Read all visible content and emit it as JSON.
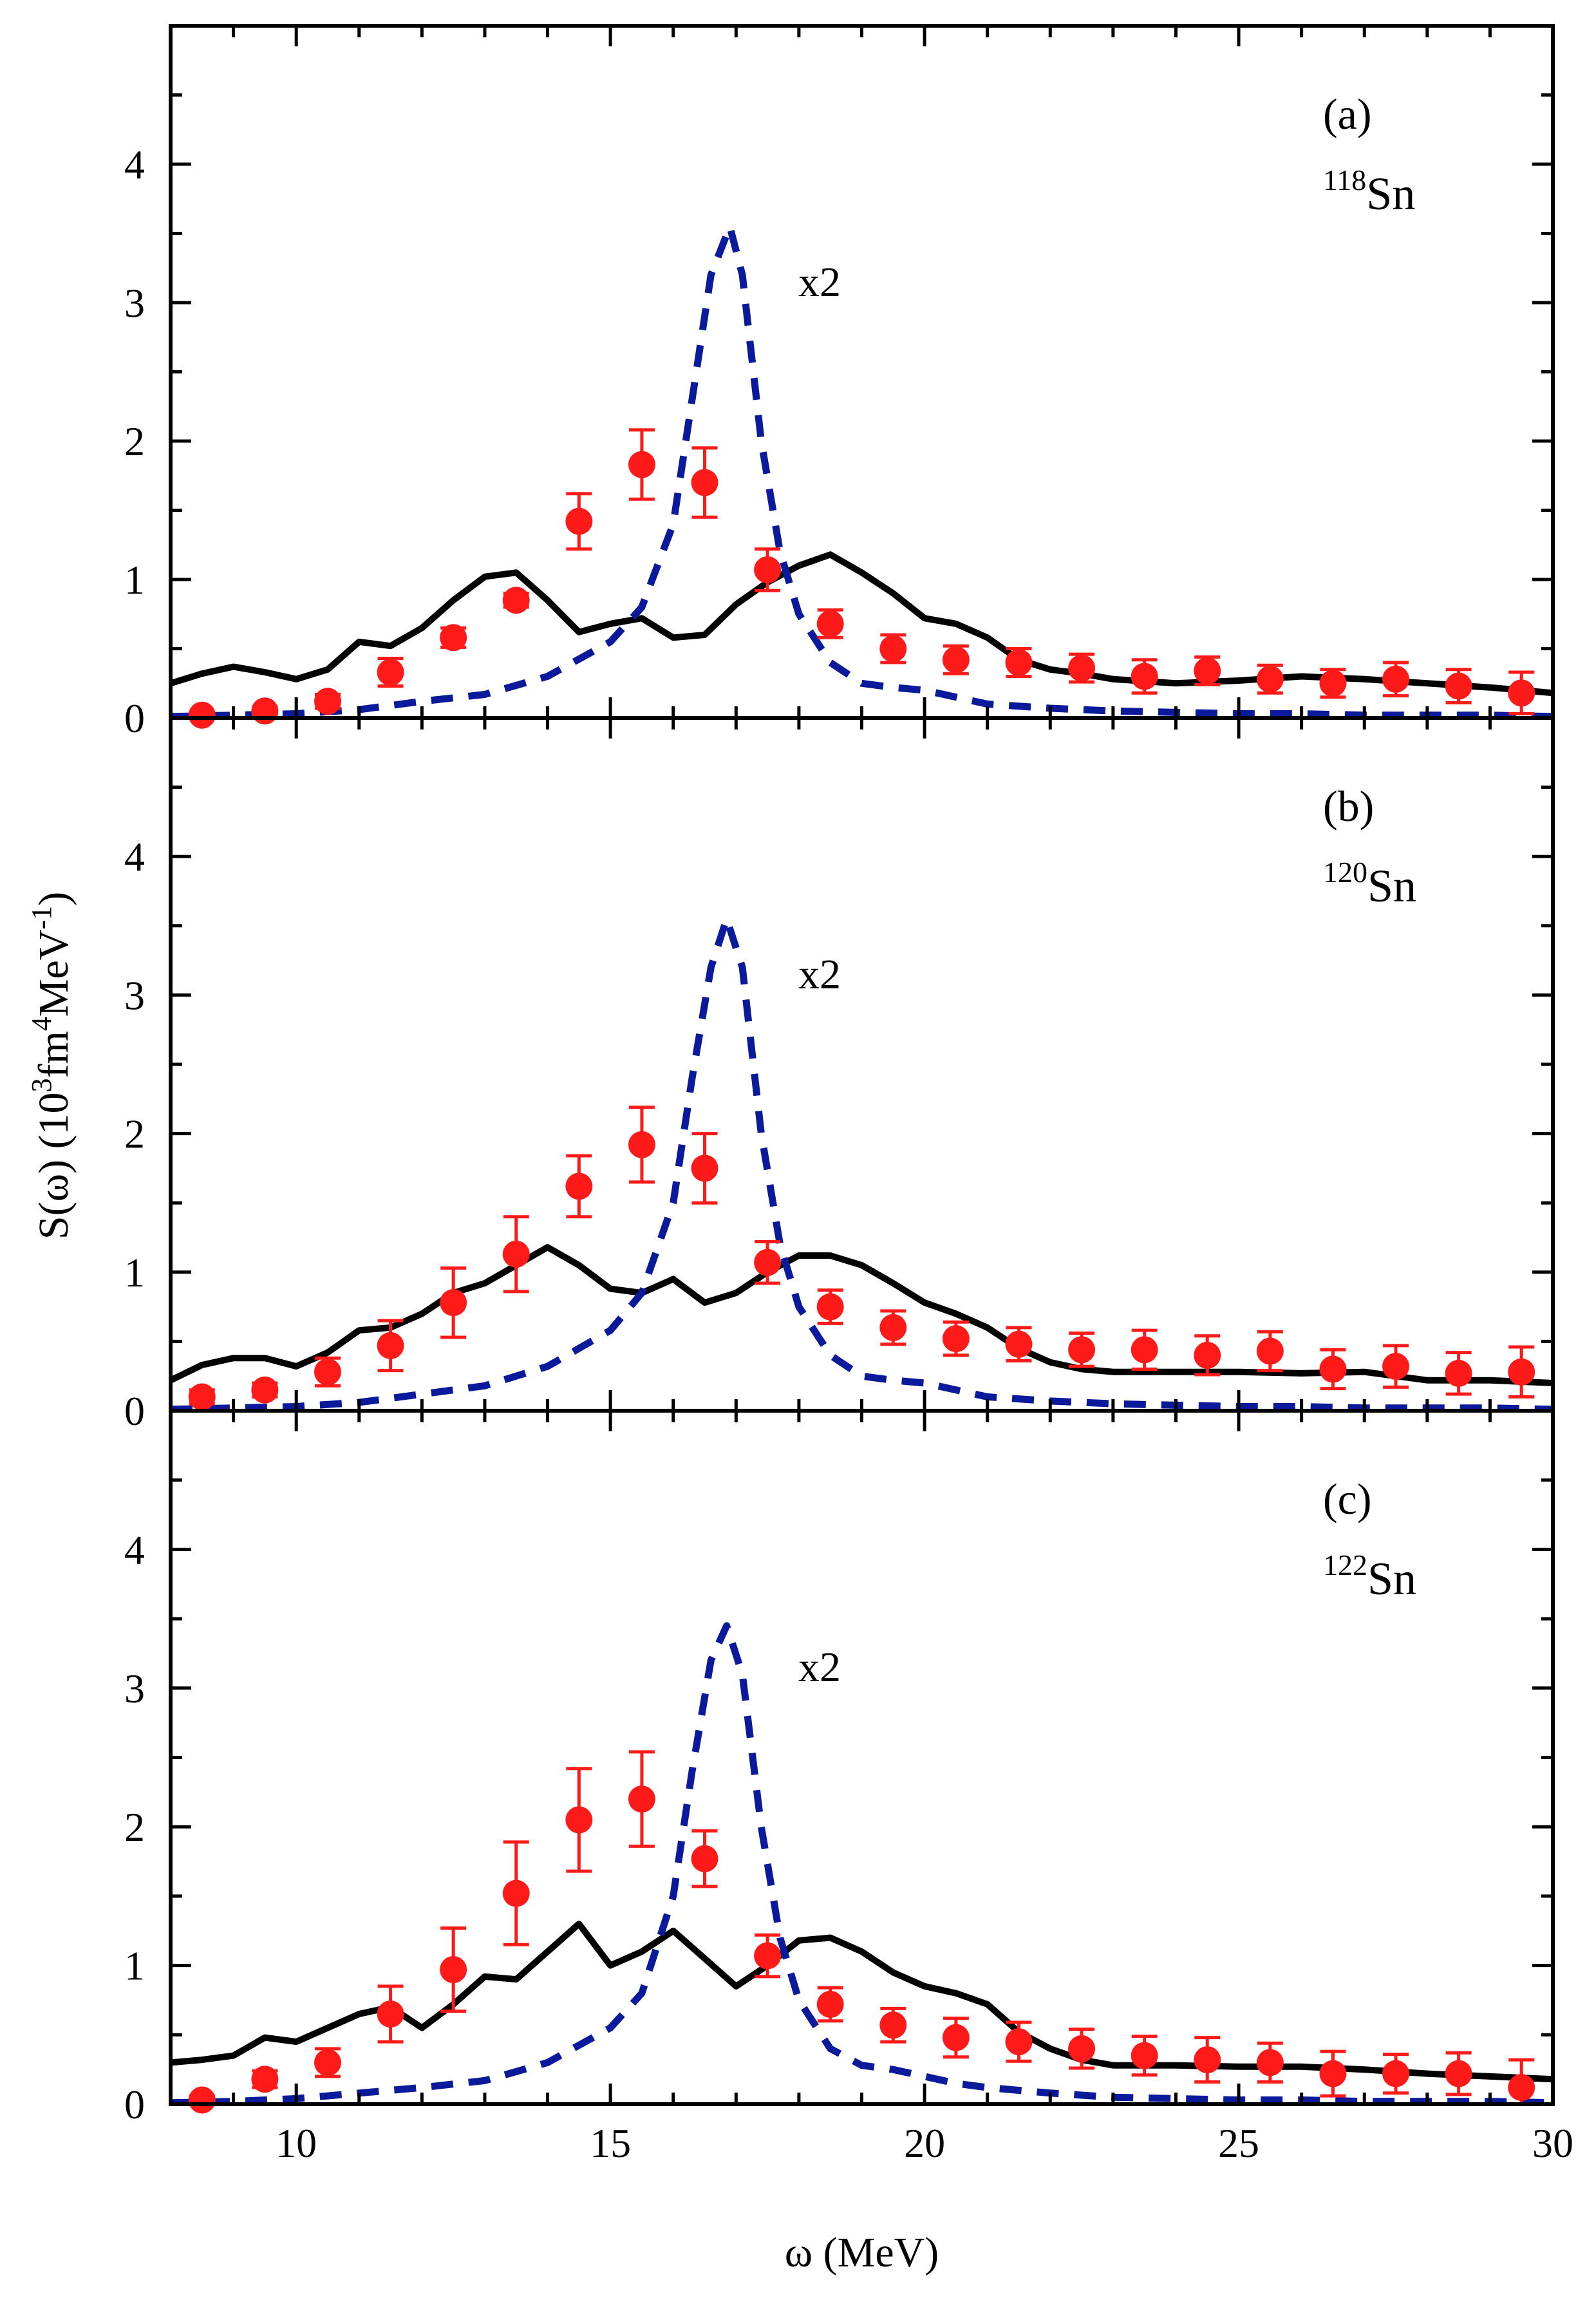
{
  "colors": {
    "solid": "#000000",
    "dashed": "#0a1a9a",
    "points": "#ff1a1a",
    "axis": "#000000"
  },
  "chart_data": {
    "type": "line",
    "layout": "three vertically stacked panels sharing x axis",
    "xlabel": "ω (MeV)",
    "ylabel": "S(ω) (10³fm⁴MeV⁻¹)",
    "ylabel_parts": {
      "main": "S(ω) (10",
      "sup1": "3",
      "mid": "fm",
      "sup2": "4",
      "mid2": "MeV",
      "sup3": "-1",
      "end": ")"
    },
    "xlim": [
      8,
      30
    ],
    "xticks": [
      10,
      15,
      20,
      25,
      30
    ],
    "xtick_labels": [
      "10",
      "15",
      "20",
      "25",
      "30"
    ],
    "ylim": [
      0,
      5
    ],
    "yticks": [
      0,
      1,
      2,
      3,
      4
    ],
    "ytick_labels": [
      "0",
      "1",
      "2",
      "3",
      "4"
    ],
    "grid": false,
    "panels": [
      {
        "label": "(a)",
        "nucleus_mass": "118",
        "nucleus_symbol": "Sn",
        "factor_label": "x2",
        "series": [
          {
            "name": "solid",
            "style": "solid",
            "x": [
              8,
              8.5,
              9,
              9.5,
              10,
              10.5,
              11,
              11.5,
              12,
              12.5,
              13,
              13.5,
              14,
              14.5,
              15,
              15.5,
              16,
              16.5,
              17,
              17.5,
              18,
              18.5,
              19,
              19.5,
              20,
              20.5,
              21,
              21.5,
              22,
              22.5,
              23,
              24,
              25,
              26,
              27,
              28,
              29,
              30
            ],
            "y": [
              0.25,
              0.32,
              0.37,
              0.33,
              0.28,
              0.35,
              0.55,
              0.52,
              0.65,
              0.85,
              1.02,
              1.05,
              0.85,
              0.62,
              0.68,
              0.72,
              0.58,
              0.6,
              0.82,
              0.98,
              1.1,
              1.18,
              1.05,
              0.9,
              0.72,
              0.68,
              0.58,
              0.42,
              0.35,
              0.32,
              0.28,
              0.25,
              0.27,
              0.3,
              0.28,
              0.25,
              0.22,
              0.18
            ]
          },
          {
            "name": "dashed",
            "style": "dashed",
            "x": [
              8,
              9,
              10,
              11,
              12,
              13,
              14,
              15,
              15.5,
              16,
              16.3,
              16.6,
              16.9,
              17.1,
              17.4,
              17.7,
              18,
              18.5,
              19,
              19.5,
              20,
              20.5,
              21,
              22,
              23,
              24,
              25,
              26,
              27,
              28,
              29,
              30
            ],
            "y": [
              0.01,
              0.02,
              0.03,
              0.06,
              0.12,
              0.17,
              0.3,
              0.55,
              0.8,
              1.4,
              2.3,
              3.2,
              3.55,
              3.2,
              2.0,
              1.2,
              0.75,
              0.4,
              0.25,
              0.22,
              0.2,
              0.15,
              0.1,
              0.07,
              0.05,
              0.04,
              0.03,
              0.03,
              0.02,
              0.02,
              0.02,
              0.01
            ]
          },
          {
            "name": "points",
            "style": "markers",
            "x": [
              8.5,
              9.5,
              10.5,
              11.5,
              12.5,
              13.5,
              14.5,
              15.5,
              16.5,
              17.5,
              18.5,
              19.5,
              20.5,
              21.5,
              22.5,
              23.5,
              24.5,
              25.5,
              26.5,
              27.5,
              28.5,
              29.5
            ],
            "y": [
              0.02,
              0.05,
              0.12,
              0.33,
              0.58,
              0.85,
              1.42,
              1.83,
              1.7,
              1.07,
              0.68,
              0.5,
              0.42,
              0.4,
              0.36,
              0.3,
              0.34,
              0.28,
              0.25,
              0.28,
              0.23,
              0.18
            ],
            "err": [
              0.02,
              0.03,
              0.05,
              0.1,
              0.07,
              0.05,
              0.2,
              0.25,
              0.25,
              0.15,
              0.1,
              0.1,
              0.1,
              0.1,
              0.1,
              0.12,
              0.1,
              0.1,
              0.1,
              0.12,
              0.12,
              0.15
            ]
          }
        ]
      },
      {
        "label": "(b)",
        "nucleus_mass": "120",
        "nucleus_symbol": "Sn",
        "factor_label": "x2",
        "series": [
          {
            "name": "solid",
            "style": "solid",
            "x": [
              8,
              8.5,
              9,
              9.5,
              10,
              10.5,
              11,
              11.5,
              12,
              12.5,
              13,
              13.5,
              14,
              14.5,
              15,
              15.5,
              16,
              16.5,
              17,
              17.5,
              18,
              18.5,
              19,
              19.5,
              20,
              20.5,
              21,
              21.5,
              22,
              22.5,
              23,
              24,
              25,
              26,
              27,
              28,
              29,
              30
            ],
            "y": [
              0.22,
              0.33,
              0.38,
              0.38,
              0.32,
              0.42,
              0.58,
              0.6,
              0.7,
              0.85,
              0.92,
              1.05,
              1.18,
              1.05,
              0.88,
              0.85,
              0.95,
              0.78,
              0.85,
              1.0,
              1.12,
              1.12,
              1.05,
              0.92,
              0.78,
              0.7,
              0.6,
              0.45,
              0.35,
              0.3,
              0.28,
              0.28,
              0.28,
              0.27,
              0.28,
              0.22,
              0.22,
              0.2
            ]
          },
          {
            "name": "dashed",
            "style": "dashed",
            "x": [
              8,
              9,
              10,
              11,
              12,
              13,
              14,
              15,
              15.5,
              16,
              16.3,
              16.6,
              16.85,
              17.1,
              17.4,
              17.7,
              18,
              18.5,
              19,
              19.5,
              20,
              20.5,
              21,
              22,
              23,
              24,
              25,
              26,
              27,
              28,
              29,
              30
            ],
            "y": [
              0.01,
              0.02,
              0.03,
              0.06,
              0.12,
              0.18,
              0.32,
              0.58,
              0.85,
              1.5,
              2.4,
              3.2,
              3.55,
              3.2,
              2.0,
              1.2,
              0.75,
              0.4,
              0.25,
              0.22,
              0.2,
              0.15,
              0.1,
              0.07,
              0.05,
              0.04,
              0.03,
              0.03,
              0.02,
              0.02,
              0.02,
              0.01
            ]
          },
          {
            "name": "points",
            "style": "markers",
            "x": [
              8.5,
              9.5,
              10.5,
              11.5,
              12.5,
              13.5,
              14.5,
              15.5,
              16.5,
              17.5,
              18.5,
              19.5,
              20.5,
              21.5,
              22.5,
              23.5,
              24.5,
              25.5,
              26.5,
              27.5,
              28.5,
              29.5
            ],
            "y": [
              0.1,
              0.15,
              0.28,
              0.47,
              0.78,
              1.13,
              1.62,
              1.92,
              1.75,
              1.07,
              0.75,
              0.6,
              0.52,
              0.48,
              0.44,
              0.44,
              0.4,
              0.43,
              0.3,
              0.32,
              0.27,
              0.28
            ],
            "err": [
              0.05,
              0.05,
              0.1,
              0.18,
              0.25,
              0.27,
              0.22,
              0.27,
              0.25,
              0.15,
              0.12,
              0.12,
              0.12,
              0.12,
              0.12,
              0.14,
              0.14,
              0.14,
              0.14,
              0.15,
              0.15,
              0.18
            ]
          }
        ]
      },
      {
        "label": "(c)",
        "nucleus_mass": "122",
        "nucleus_symbol": "Sn",
        "factor_label": "x2",
        "series": [
          {
            "name": "solid",
            "style": "solid",
            "x": [
              8,
              8.5,
              9,
              9.5,
              10,
              10.5,
              11,
              11.5,
              12,
              12.5,
              13,
              13.5,
              14,
              14.5,
              15,
              15.5,
              16,
              16.5,
              17,
              17.5,
              18,
              18.5,
              19,
              19.5,
              20,
              20.5,
              21,
              21.5,
              22,
              22.5,
              23,
              24,
              25,
              26,
              27,
              28,
              29,
              30
            ],
            "y": [
              0.3,
              0.32,
              0.35,
              0.48,
              0.45,
              0.55,
              0.65,
              0.7,
              0.55,
              0.72,
              0.92,
              0.9,
              1.1,
              1.3,
              1.0,
              1.1,
              1.25,
              1.05,
              0.85,
              1.0,
              1.18,
              1.2,
              1.1,
              0.95,
              0.85,
              0.8,
              0.72,
              0.52,
              0.4,
              0.32,
              0.28,
              0.28,
              0.27,
              0.27,
              0.25,
              0.22,
              0.2,
              0.18
            ]
          },
          {
            "name": "dashed",
            "style": "dashed",
            "x": [
              8,
              9,
              10,
              11,
              12,
              13,
              14,
              15,
              15.5,
              16,
              16.3,
              16.6,
              16.85,
              17.1,
              17.4,
              17.7,
              18,
              18.5,
              19,
              19.5,
              20,
              20.5,
              21,
              22,
              23,
              24,
              25,
              26,
              27,
              28,
              29,
              30
            ],
            "y": [
              0.01,
              0.02,
              0.04,
              0.08,
              0.12,
              0.17,
              0.3,
              0.55,
              0.8,
              1.5,
              2.4,
              3.2,
              3.45,
              3.1,
              2.0,
              1.2,
              0.75,
              0.4,
              0.28,
              0.25,
              0.2,
              0.15,
              0.12,
              0.08,
              0.05,
              0.04,
              0.03,
              0.03,
              0.02,
              0.02,
              0.02,
              0.01
            ]
          },
          {
            "name": "points",
            "style": "markers",
            "x": [
              8.5,
              9.5,
              10.5,
              11.5,
              12.5,
              13.5,
              14.5,
              15.5,
              16.5,
              17.5,
              18.5,
              19.5,
              20.5,
              21.5,
              22.5,
              23.5,
              24.5,
              25.5,
              26.5,
              27.5,
              28.5,
              29.5
            ],
            "y": [
              0.03,
              0.18,
              0.3,
              0.65,
              0.97,
              1.52,
              2.05,
              2.2,
              1.77,
              1.07,
              0.72,
              0.57,
              0.48,
              0.45,
              0.4,
              0.35,
              0.32,
              0.3,
              0.22,
              0.22,
              0.22,
              0.12
            ],
            "err": [
              0.03,
              0.06,
              0.1,
              0.2,
              0.3,
              0.37,
              0.37,
              0.34,
              0.2,
              0.15,
              0.12,
              0.12,
              0.14,
              0.14,
              0.14,
              0.14,
              0.16,
              0.14,
              0.16,
              0.14,
              0.15,
              0.2
            ]
          }
        ]
      }
    ]
  }
}
